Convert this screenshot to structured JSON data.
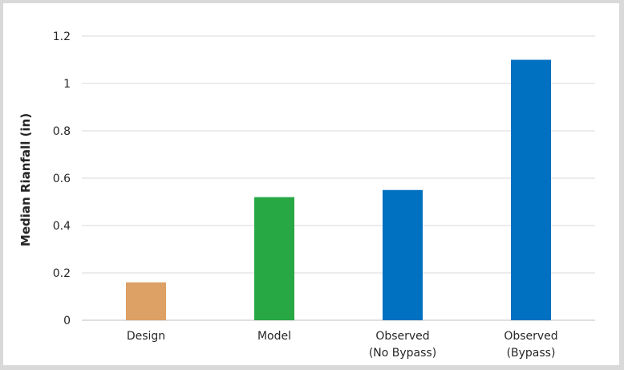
{
  "chart_data": {
    "type": "bar",
    "title": "",
    "xlabel": "",
    "ylabel": "Median Rianfall (in)",
    "ylim": [
      0,
      1.2
    ],
    "yticks": [
      0,
      0.2,
      0.4,
      0.6,
      0.8,
      1,
      1.2
    ],
    "ytick_labels": [
      "0",
      "0.2",
      "0.4",
      "0.6",
      "0.8",
      "1",
      "1.2"
    ],
    "grid": true,
    "legend": "none",
    "categories": [
      {
        "lines": [
          "Design"
        ]
      },
      {
        "lines": [
          "Model"
        ]
      },
      {
        "lines": [
          "Observed",
          "(No Bypass)"
        ]
      },
      {
        "lines": [
          "Observed",
          "(Bypass)"
        ]
      }
    ],
    "values": [
      0.16,
      0.52,
      0.55,
      1.1
    ],
    "colors": [
      "#dda065",
      "#28a745",
      "#0070c0",
      "#0070c0"
    ]
  }
}
